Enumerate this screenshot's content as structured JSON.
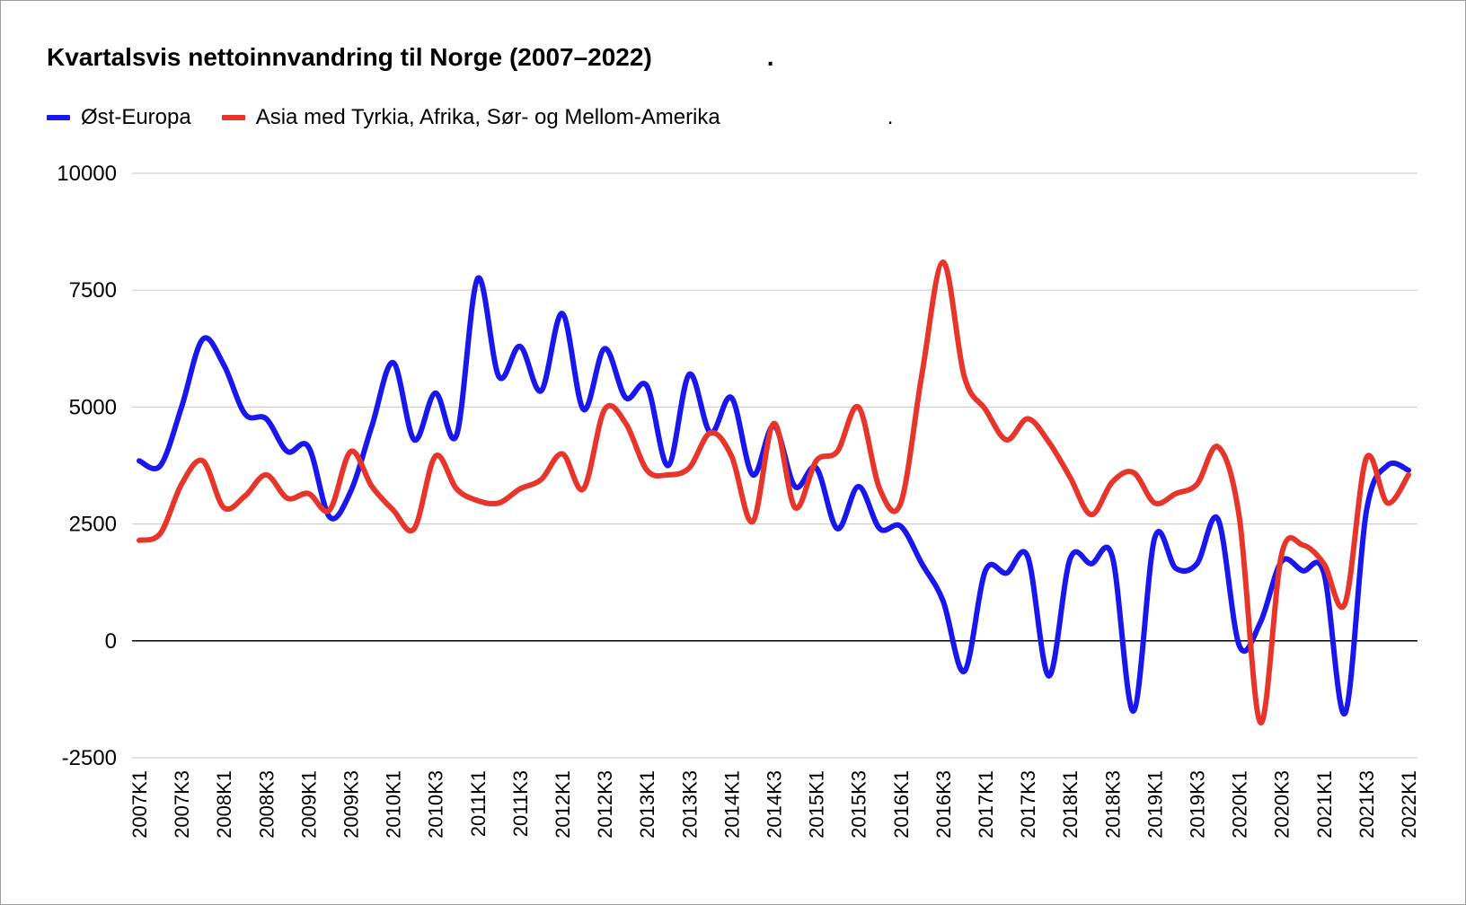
{
  "chart_data": {
    "type": "line",
    "title": "Kvartalsvis nettoinnvandring til Norge (2007–2022)",
    "title_suffix": ".",
    "legend_suffix": ".",
    "xlabel": "",
    "ylabel": "",
    "ylim": [
      -2500,
      10000
    ],
    "yticks": [
      -2500,
      0,
      2500,
      5000,
      7500,
      10000
    ],
    "x_tick_labels": [
      "2007K1",
      "2007K3",
      "2008K1",
      "2008K3",
      "2009K1",
      "2009K3",
      "2010K1",
      "2010K3",
      "2011K1",
      "2011K3",
      "2012K1",
      "2012K3",
      "2013K1",
      "2013K3",
      "2014K1",
      "2014K3",
      "2015K1",
      "2015K3",
      "2016K1",
      "2016K3",
      "2017K1",
      "2017K3",
      "2018K1",
      "2018K3",
      "2019K1",
      "2019K3",
      "2020K1",
      "2020K3",
      "2021K1",
      "2021K3",
      "2022K1"
    ],
    "categories": [
      "2007K1",
      "2007K2",
      "2007K3",
      "2007K4",
      "2008K1",
      "2008K2",
      "2008K3",
      "2008K4",
      "2009K1",
      "2009K2",
      "2009K3",
      "2009K4",
      "2010K1",
      "2010K2",
      "2010K3",
      "2010K4",
      "2011K1",
      "2011K2",
      "2011K3",
      "2011K4",
      "2012K1",
      "2012K2",
      "2012K3",
      "2012K4",
      "2013K1",
      "2013K2",
      "2013K3",
      "2013K4",
      "2014K1",
      "2014K2",
      "2014K3",
      "2014K4",
      "2015K1",
      "2015K2",
      "2015K3",
      "2015K4",
      "2016K1",
      "2016K2",
      "2016K3",
      "2016K4",
      "2017K1",
      "2017K2",
      "2017K3",
      "2017K4",
      "2018K1",
      "2018K2",
      "2018K3",
      "2018K4",
      "2019K1",
      "2019K2",
      "2019K3",
      "2019K4",
      "2020K1",
      "2020K2",
      "2020K3",
      "2020K4",
      "2021K1",
      "2021K2",
      "2021K3",
      "2021K4",
      "2022K1"
    ],
    "series": [
      {
        "name": "Øst-Europa",
        "color": "#1a17ee",
        "values": [
          3850,
          3750,
          5000,
          6450,
          5900,
          4850,
          4750,
          4050,
          4150,
          2650,
          3200,
          4600,
          5950,
          4300,
          5300,
          4400,
          7750,
          5650,
          6300,
          5350,
          7000,
          4950,
          6250,
          5200,
          5450,
          3750,
          5700,
          4450,
          5200,
          3550,
          4600,
          3300,
          3700,
          2400,
          3300,
          2400,
          2450,
          1650,
          850,
          -650,
          1500,
          1450,
          1800,
          -750,
          1750,
          1650,
          1800,
          -1500,
          2200,
          1550,
          1650,
          2600,
          -100,
          400,
          1700,
          1500,
          1450,
          -1550,
          2750,
          3750,
          3650
        ]
      },
      {
        "name": "Asia med Tyrkia, Afrika, Sør- og Mellom-Amerika",
        "color": "#e8352b",
        "values": [
          2150,
          2300,
          3350,
          3850,
          2850,
          3100,
          3550,
          3050,
          3150,
          2800,
          4050,
          3300,
          2800,
          2400,
          3950,
          3250,
          3000,
          2950,
          3250,
          3450,
          4000,
          3250,
          4950,
          4650,
          3650,
          3550,
          3700,
          4450,
          3950,
          2550,
          4650,
          2850,
          3850,
          4050,
          5000,
          3250,
          2950,
          5700,
          8100,
          5650,
          4950,
          4300,
          4750,
          4250,
          3500,
          2700,
          3400,
          3600,
          2950,
          3150,
          3350,
          4150,
          2650,
          -1750,
          1850,
          2050,
          1650,
          800,
          3900,
          2950,
          3550
        ]
      }
    ]
  }
}
